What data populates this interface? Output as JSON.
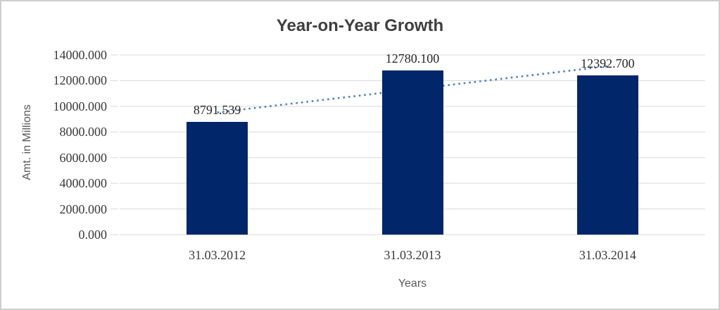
{
  "chart_data": {
    "type": "bar",
    "title": "Year-on-Year Growth",
    "xlabel": "Years",
    "ylabel": "Amt. in Millions",
    "categories": [
      "31.03.2012",
      "31.03.2013",
      "31.03.2014"
    ],
    "values": [
      8791.539,
      12780.1,
      12392.7
    ],
    "data_labels": [
      "8791.539",
      "12780.100",
      "12392.700"
    ],
    "ytick_values": [
      0,
      2000,
      4000,
      6000,
      8000,
      10000,
      12000,
      14000
    ],
    "ytick_labels": [
      "0.000",
      "2000.000",
      "4000.000",
      "6000.000",
      "8000.000",
      "10000.000",
      "12000.000",
      "14000.000"
    ],
    "ylim": [
      0,
      14000
    ],
    "grid": true,
    "legend": "none",
    "bar_color": "#02266a",
    "gridline_color": "#d9d9d9",
    "title_color": "#3f3f3f",
    "trendline": {
      "type": "linear",
      "style": "dotted",
      "color": "#4e81bd"
    }
  }
}
